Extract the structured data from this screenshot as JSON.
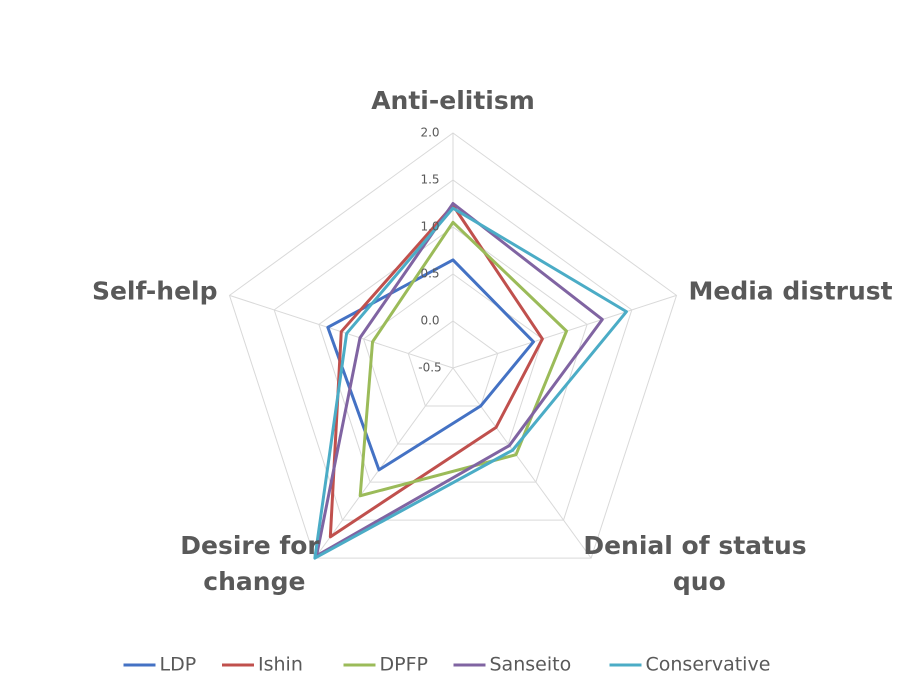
{
  "chart_data": {
    "type": "radar",
    "categories": [
      "Anti-elitism",
      "Media distrust",
      "Denial of status quo",
      "Desire for change",
      "Self-help"
    ],
    "ylim": [
      -0.5,
      2.0
    ],
    "yticks": [
      {
        "value": -0.5,
        "label": "-0.5"
      },
      {
        "value": 0,
        "label": "0.0"
      },
      {
        "value": 0.5,
        "label": "0.5"
      },
      {
        "value": 1,
        "label": "1.0"
      },
      {
        "value": 1.5,
        "label": "1.5"
      },
      {
        "value": 2,
        "label": "2.0"
      }
    ],
    "grid": true,
    "legend": "bottom",
    "series": [
      {
        "name": "LDP",
        "color": "#4472c4",
        "values": [
          0.65,
          0.4,
          0.0,
          0.84,
          0.9
        ]
      },
      {
        "name": "Ishin",
        "color": "#c0504d",
        "values": [
          1.23,
          0.5,
          0.28,
          1.72,
          0.75
        ]
      },
      {
        "name": "DPFP",
        "color": "#9bbb59",
        "values": [
          1.05,
          0.77,
          0.64,
          1.18,
          0.4
        ]
      },
      {
        "name": "Sanseito",
        "color": "#8064a2",
        "values": [
          1.25,
          1.17,
          0.52,
          1.97,
          0.54
        ]
      },
      {
        "name": "Conservative",
        "color": "#4bacc6",
        "values": [
          1.2,
          1.44,
          0.58,
          2.0,
          0.69
        ]
      }
    ]
  }
}
